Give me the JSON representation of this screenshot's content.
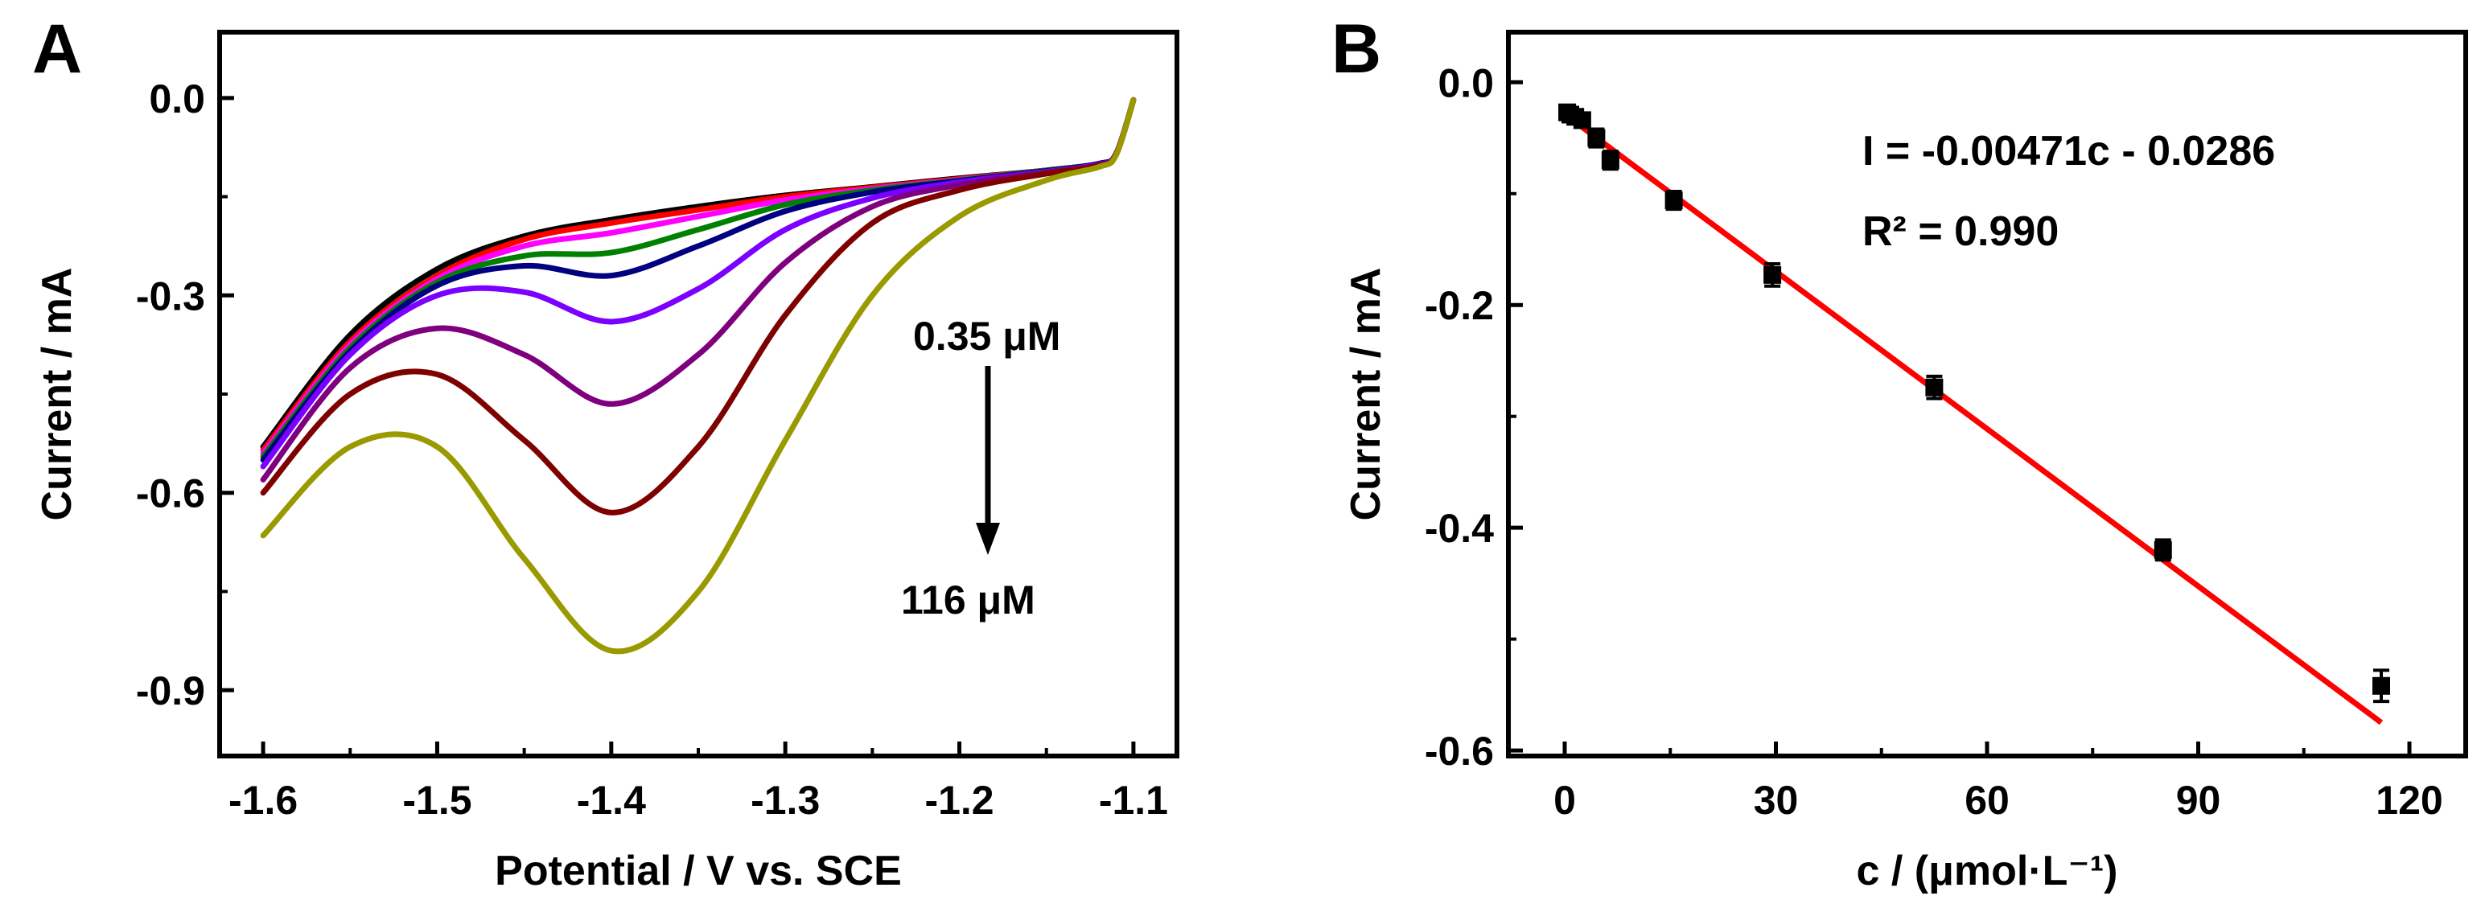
{
  "chart_data": [
    {
      "panel": "A",
      "type": "line",
      "xlabel": "Potential / V vs. SCE",
      "ylabel": "Current / mA",
      "xlim": [
        -1.6,
        -1.1
      ],
      "ylim": [
        -1.0,
        0.1
      ],
      "xticks": [
        "-1.6",
        "-1.5",
        "-1.4",
        "-1.3",
        "-1.2",
        "-1.1"
      ],
      "yticks": [
        "0.0",
        "-0.3",
        "-0.6",
        "-0.9"
      ],
      "grid": false,
      "legend": "none",
      "annotations": {
        "top": "0.35 μM",
        "bottom": "116 μM"
      },
      "x": [
        -1.6,
        -1.55,
        -1.5,
        -1.45,
        -1.4,
        -1.35,
        -1.3,
        -1.25,
        -1.2,
        -1.15,
        -1.12,
        -1.11,
        -1.1
      ],
      "series": [
        {
          "color": "#000000",
          "values": [
            -0.53,
            -0.36,
            -0.26,
            -0.21,
            -0.185,
            -0.165,
            -0.148,
            -0.135,
            -0.122,
            -0.11,
            -0.1,
            -0.085,
            -0.003
          ]
        },
        {
          "color": "#ff0000",
          "values": [
            -0.535,
            -0.37,
            -0.27,
            -0.215,
            -0.19,
            -0.17,
            -0.15,
            -0.136,
            -0.123,
            -0.11,
            -0.1,
            -0.085,
            -0.003
          ]
        },
        {
          "color": "#ff00ff",
          "values": [
            -0.54,
            -0.375,
            -0.275,
            -0.225,
            -0.205,
            -0.18,
            -0.155,
            -0.138,
            -0.124,
            -0.11,
            -0.1,
            -0.085,
            -0.003
          ]
        },
        {
          "color": "#008000",
          "values": [
            -0.545,
            -0.38,
            -0.28,
            -0.24,
            -0.235,
            -0.2,
            -0.162,
            -0.14,
            -0.125,
            -0.11,
            -0.1,
            -0.085,
            -0.003
          ]
        },
        {
          "color": "#000080",
          "values": [
            -0.55,
            -0.385,
            -0.285,
            -0.255,
            -0.27,
            -0.225,
            -0.172,
            -0.143,
            -0.126,
            -0.111,
            -0.1,
            -0.085,
            -0.003
          ]
        },
        {
          "color": "#7b00ff",
          "values": [
            -0.56,
            -0.39,
            -0.3,
            -0.295,
            -0.34,
            -0.29,
            -0.2,
            -0.152,
            -0.128,
            -0.112,
            -0.101,
            -0.085,
            -0.003
          ]
        },
        {
          "color": "#7f007f",
          "values": [
            -0.58,
            -0.41,
            -0.35,
            -0.39,
            -0.465,
            -0.39,
            -0.25,
            -0.165,
            -0.132,
            -0.113,
            -0.102,
            -0.086,
            -0.003
          ]
        },
        {
          "color": "#7f0000",
          "values": [
            -0.6,
            -0.45,
            -0.42,
            -0.52,
            -0.63,
            -0.53,
            -0.33,
            -0.19,
            -0.14,
            -0.115,
            -0.103,
            -0.086,
            -0.003
          ]
        },
        {
          "color": "#999900",
          "values": [
            -0.665,
            -0.53,
            -0.53,
            -0.7,
            -0.84,
            -0.75,
            -0.52,
            -0.3,
            -0.18,
            -0.125,
            -0.105,
            -0.087,
            -0.003
          ]
        }
      ]
    },
    {
      "panel": "B",
      "type": "scatter",
      "xlabel": "c / (μmol·L⁻¹)",
      "ylabel": "Current / mA",
      "xlim": [
        -8,
        128
      ],
      "ylim": [
        -0.605,
        0.045
      ],
      "xticks": [
        "0",
        "30",
        "60",
        "90",
        "120"
      ],
      "yticks": [
        "0.0",
        "-0.2",
        "-0.4",
        "-0.6"
      ],
      "grid": false,
      "legend": "none",
      "equation": "I = -0.00471c - 0.0286",
      "r_squared": "R² = 0.990",
      "points": {
        "x": [
          0.35,
          0.8,
          1.5,
          2.5,
          4.5,
          6.5,
          15.5,
          29.5,
          52.5,
          85,
          116
        ],
        "y": [
          -0.027,
          -0.029,
          -0.031,
          -0.034,
          -0.05,
          -0.07,
          -0.106,
          -0.173,
          -0.274,
          -0.42,
          -0.542
        ],
        "error": [
          0.006,
          0.006,
          0.006,
          0.006,
          0.008,
          0.008,
          0.008,
          0.01,
          0.01,
          0.009,
          0.014
        ]
      },
      "fit": {
        "color": "#ff0000",
        "x": [
          0,
          116
        ],
        "slope": -0.00471,
        "intercept": -0.0286
      }
    }
  ]
}
